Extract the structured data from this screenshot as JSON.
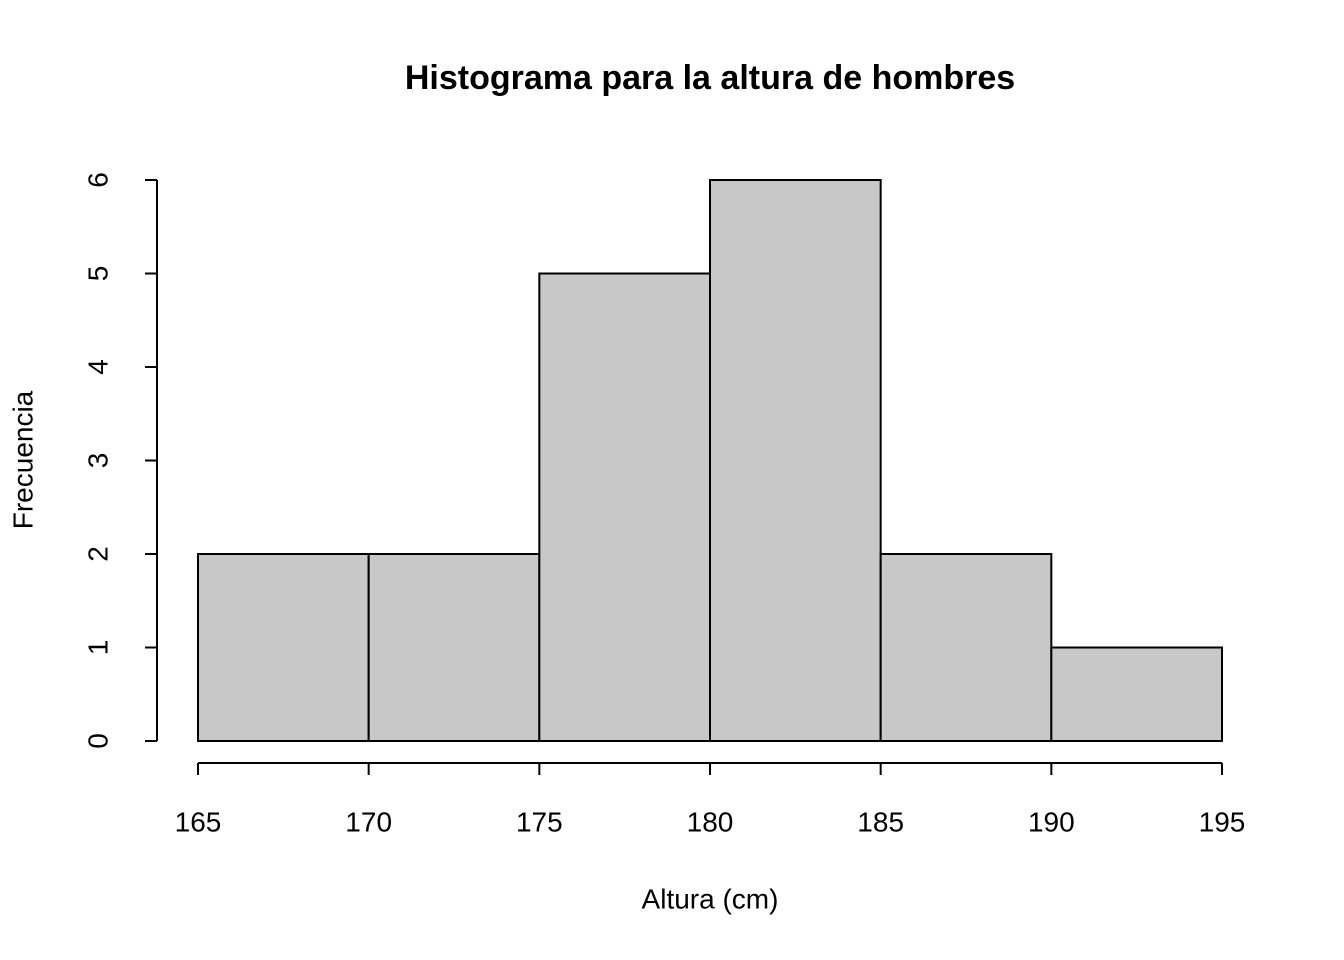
{
  "chart_data": {
    "type": "histogram",
    "title": "Histograma para la altura de hombres",
    "x_label": "Altura (cm)",
    "y_label": "Frecuencia",
    "bins": [
      165,
      170,
      175,
      180,
      185,
      190,
      195
    ],
    "values": [
      2,
      2,
      5,
      6,
      2,
      1
    ],
    "color": "#c8c8c8",
    "xlim": [
      165,
      195
    ],
    "xticks": [
      165,
      170,
      175,
      180,
      185,
      190,
      195
    ],
    "ylim": [
      0,
      6
    ],
    "yticks": [
      0,
      1,
      2,
      3,
      4,
      5,
      6
    ]
  }
}
